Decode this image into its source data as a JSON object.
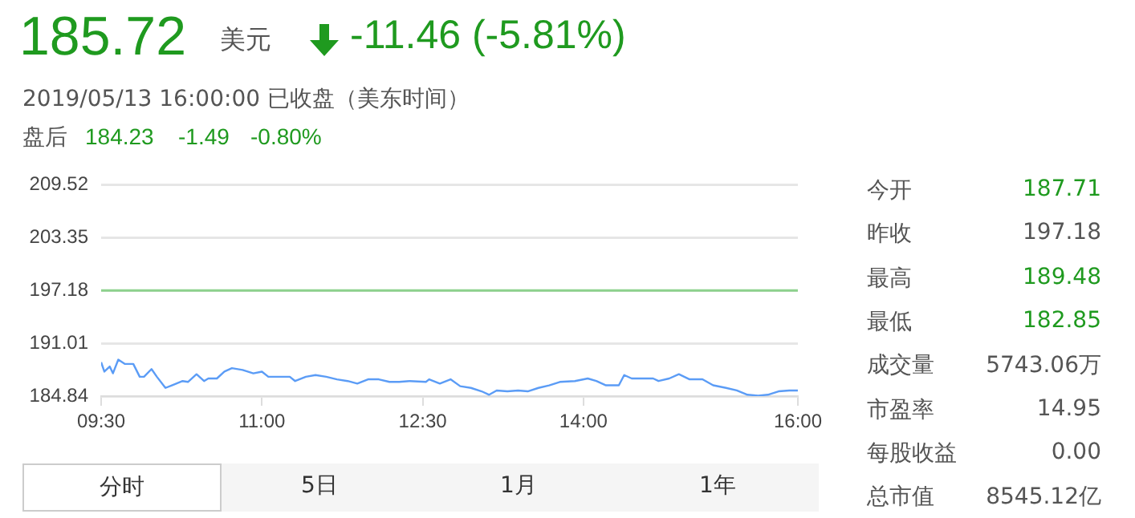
{
  "chart_data": {
    "type": "line",
    "x": [
      9.5,
      9.53,
      9.58,
      9.61,
      9.66,
      9.72,
      9.8,
      9.86,
      9.9,
      9.97,
      10.02,
      10.1,
      10.16,
      10.26,
      10.31,
      10.39,
      10.46,
      10.5,
      10.58,
      10.65,
      10.72,
      10.82,
      10.92,
      11.0,
      11.06,
      11.16,
      11.26,
      11.31,
      11.41,
      11.5,
      11.6,
      11.7,
      11.8,
      11.89,
      11.99,
      12.09,
      12.19,
      12.28,
      12.38,
      12.53,
      12.56,
      12.66,
      12.76,
      12.85,
      12.95,
      13.05,
      13.12,
      13.19,
      13.29,
      13.39,
      13.48,
      13.58,
      13.68,
      13.78,
      13.92,
      14.04,
      14.12,
      14.21,
      14.33,
      14.38,
      14.45,
      14.65,
      14.7,
      14.8,
      14.89,
      14.99,
      15.11,
      15.21,
      15.33,
      15.43,
      15.53,
      15.63,
      15.72,
      15.82,
      15.92,
      16.0
    ],
    "series": [
      {
        "color": "#5b9cf6",
        "values": [
          188.8,
          187.7,
          188.3,
          187.5,
          189.1,
          188.6,
          188.6,
          187.1,
          187.1,
          188.0,
          187.1,
          185.8,
          186.1,
          186.6,
          186.5,
          187.4,
          186.6,
          186.9,
          186.9,
          187.7,
          188.1,
          187.9,
          187.5,
          187.7,
          187.1,
          187.1,
          187.1,
          186.6,
          187.1,
          187.3,
          187.1,
          186.8,
          186.6,
          186.3,
          186.8,
          186.8,
          186.5,
          186.5,
          186.6,
          186.5,
          186.8,
          186.3,
          186.8,
          186.0,
          185.8,
          185.4,
          185.0,
          185.5,
          185.4,
          185.5,
          185.4,
          185.8,
          186.1,
          186.5,
          186.6,
          186.9,
          186.6,
          186.1,
          186.1,
          187.3,
          186.9,
          186.9,
          186.6,
          186.9,
          187.4,
          186.8,
          186.8,
          186.1,
          185.8,
          185.5,
          185.0,
          184.9,
          185.0,
          185.4,
          185.5,
          185.5
        ]
      }
    ],
    "xlim": [
      9.5,
      16
    ],
    "xticks": [
      {
        "value": 9.5,
        "label": "09:30"
      },
      {
        "value": 11,
        "label": "11:00"
      },
      {
        "value": 12.5,
        "label": "12:30"
      },
      {
        "value": 14,
        "label": "14:00"
      },
      {
        "value": 16,
        "label": "16:00"
      }
    ],
    "ylim": [
      184.84,
      209.52
    ],
    "yticks": [
      184.84,
      191.01,
      197.18,
      203.35,
      209.52
    ],
    "ref_lines": [
      {
        "axis": "y",
        "value": 197.18,
        "color": "#8dd28d"
      }
    ],
    "grid": "y",
    "legend": false,
    "marker": "none",
    "line_style": "solid",
    "annotations": [
      "185.72",
      "美元",
      "-11.46 (-5.81%)",
      "2019/05/13 16:00:00 已收盘（美东时间）",
      "盘后",
      "184.23",
      "-1.49",
      "-0.80%",
      "今开",
      "187.71",
      "昨收",
      "197.18",
      "最高",
      "189.48",
      "最低",
      "182.85",
      "成交量",
      "5743.06万",
      "市盈率",
      "14.95",
      "每股收益",
      "0.00",
      "总市值",
      "8545.12亿",
      "分时",
      "5日",
      "1月",
      "1年"
    ]
  }
}
